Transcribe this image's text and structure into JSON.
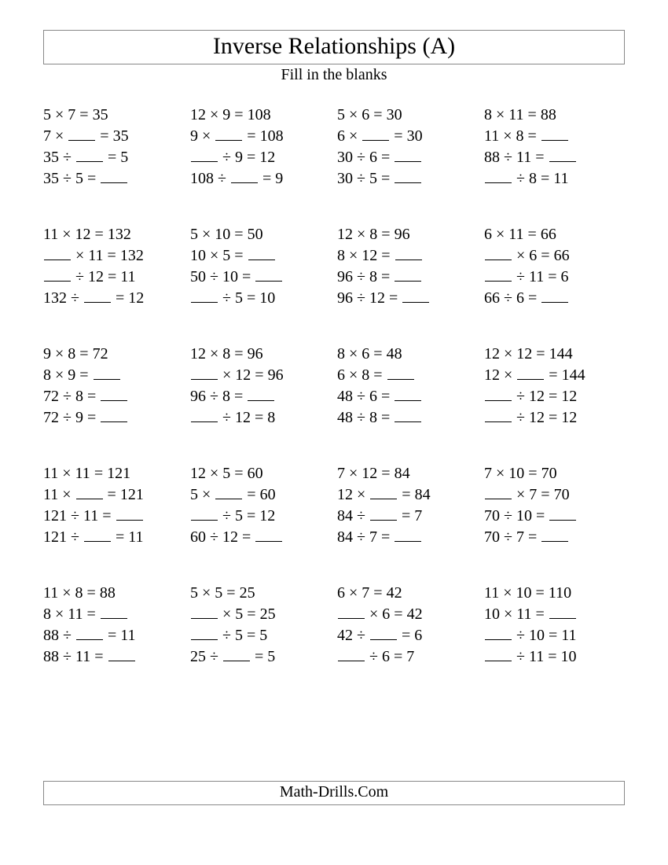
{
  "title": "Inverse Relationships (A)",
  "subtitle": "Fill in the blanks",
  "footer": "Math-Drills.Com",
  "mul": "×",
  "div": "÷",
  "eq": "=",
  "colors": {
    "bg": "#ffffff",
    "text": "#000000",
    "border": "#888888"
  },
  "groups": [
    [
      [
        "5",
        "×",
        "7",
        "=",
        "35"
      ],
      [
        "7",
        "×",
        "_",
        "=",
        "35"
      ],
      [
        "35",
        "÷",
        "_",
        "=",
        "5"
      ],
      [
        "35",
        "÷",
        "5",
        "=",
        "_"
      ]
    ],
    [
      [
        "12",
        "×",
        "9",
        "=",
        "108"
      ],
      [
        "9",
        "×",
        "_",
        "=",
        "108"
      ],
      [
        "_",
        "÷",
        "9",
        "=",
        "12"
      ],
      [
        "108",
        "÷",
        "_",
        "=",
        "9"
      ]
    ],
    [
      [
        "5",
        "×",
        "6",
        "=",
        "30"
      ],
      [
        "6",
        "×",
        "_",
        "=",
        "30"
      ],
      [
        "30",
        "÷",
        "6",
        "=",
        "_"
      ],
      [
        "30",
        "÷",
        "5",
        "=",
        "_"
      ]
    ],
    [
      [
        "8",
        "×",
        "11",
        "=",
        "88"
      ],
      [
        "11",
        "×",
        "8",
        "=",
        "_"
      ],
      [
        "88",
        "÷",
        "11",
        "=",
        "_"
      ],
      [
        "_",
        "÷",
        "8",
        "=",
        "11"
      ]
    ],
    [
      [
        "11",
        "×",
        "12",
        "=",
        "132"
      ],
      [
        "_",
        "×",
        "11",
        "=",
        "132"
      ],
      [
        "_",
        "÷",
        "12",
        "=",
        "11"
      ],
      [
        "132",
        "÷",
        "_",
        "=",
        "12"
      ]
    ],
    [
      [
        "5",
        "×",
        "10",
        "=",
        "50"
      ],
      [
        "10",
        "×",
        "5",
        "=",
        "_"
      ],
      [
        "50",
        "÷",
        "10",
        "=",
        "_"
      ],
      [
        "_",
        "÷",
        "5",
        "=",
        "10"
      ]
    ],
    [
      [
        "12",
        "×",
        "8",
        "=",
        "96"
      ],
      [
        "8",
        "×",
        "12",
        "=",
        "_"
      ],
      [
        "96",
        "÷",
        "8",
        "=",
        "_"
      ],
      [
        "96",
        "÷",
        "12",
        "=",
        "_"
      ]
    ],
    [
      [
        "6",
        "×",
        "11",
        "=",
        "66"
      ],
      [
        "_",
        "×",
        "6",
        "=",
        "66"
      ],
      [
        "_",
        "÷",
        "11",
        "=",
        "6"
      ],
      [
        "66",
        "÷",
        "6",
        "=",
        "_"
      ]
    ],
    [
      [
        "9",
        "×",
        "8",
        "=",
        "72"
      ],
      [
        "8",
        "×",
        "9",
        "=",
        "_"
      ],
      [
        "72",
        "÷",
        "8",
        "=",
        "_"
      ],
      [
        "72",
        "÷",
        "9",
        "=",
        "_"
      ]
    ],
    [
      [
        "12",
        "×",
        "8",
        "=",
        "96"
      ],
      [
        "_",
        "×",
        "12",
        "=",
        "96"
      ],
      [
        "96",
        "÷",
        "8",
        "=",
        "_"
      ],
      [
        "_",
        "÷",
        "12",
        "=",
        "8"
      ]
    ],
    [
      [
        "8",
        "×",
        "6",
        "=",
        "48"
      ],
      [
        "6",
        "×",
        "8",
        "=",
        "_"
      ],
      [
        "48",
        "÷",
        "6",
        "=",
        "_"
      ],
      [
        "48",
        "÷",
        "8",
        "=",
        "_"
      ]
    ],
    [
      [
        "12",
        "×",
        "12",
        "=",
        "144"
      ],
      [
        "12",
        "×",
        "_",
        "=",
        "144"
      ],
      [
        "_",
        "÷",
        "12",
        "=",
        "12"
      ],
      [
        "_",
        "÷",
        "12",
        "=",
        "12"
      ]
    ],
    [
      [
        "11",
        "×",
        "11",
        "=",
        "121"
      ],
      [
        "11",
        "×",
        "_",
        "=",
        "121"
      ],
      [
        "121",
        "÷",
        "11",
        "=",
        "_"
      ],
      [
        "121",
        "÷",
        "_",
        "=",
        "11"
      ]
    ],
    [
      [
        "12",
        "×",
        "5",
        "=",
        "60"
      ],
      [
        "5",
        "×",
        "_",
        "=",
        "60"
      ],
      [
        "_",
        "÷",
        "5",
        "=",
        "12"
      ],
      [
        "60",
        "÷",
        "12",
        "=",
        "_"
      ]
    ],
    [
      [
        "7",
        "×",
        "12",
        "=",
        "84"
      ],
      [
        "12",
        "×",
        "_",
        "=",
        "84"
      ],
      [
        "84",
        "÷",
        "_",
        "=",
        "7"
      ],
      [
        "84",
        "÷",
        "7",
        "=",
        "_"
      ]
    ],
    [
      [
        "7",
        "×",
        "10",
        "=",
        "70"
      ],
      [
        "_",
        "×",
        "7",
        "=",
        "70"
      ],
      [
        "70",
        "÷",
        "10",
        "=",
        "_"
      ],
      [
        "70",
        "÷",
        "7",
        "=",
        "_"
      ]
    ],
    [
      [
        "11",
        "×",
        "8",
        "=",
        "88"
      ],
      [
        "8",
        "×",
        "11",
        "=",
        "_"
      ],
      [
        "88",
        "÷",
        "_",
        "=",
        "11"
      ],
      [
        "88",
        "÷",
        "11",
        "=",
        "_"
      ]
    ],
    [
      [
        "5",
        "×",
        "5",
        "=",
        "25"
      ],
      [
        "_",
        "×",
        "5",
        "=",
        "25"
      ],
      [
        "_",
        "÷",
        "5",
        "=",
        "5"
      ],
      [
        "25",
        "÷",
        "_",
        "=",
        "5"
      ]
    ],
    [
      [
        "6",
        "×",
        "7",
        "=",
        "42"
      ],
      [
        "_",
        "×",
        "6",
        "=",
        "42"
      ],
      [
        "42",
        "÷",
        "_",
        "=",
        "6"
      ],
      [
        "_",
        "÷",
        "6",
        "=",
        "7"
      ]
    ],
    [
      [
        "11",
        "×",
        "10",
        "=",
        "110"
      ],
      [
        "10",
        "×",
        "11",
        "=",
        "_"
      ],
      [
        "_",
        "÷",
        "10",
        "=",
        "11"
      ],
      [
        "_",
        "÷",
        "11",
        "=",
        "10"
      ]
    ]
  ]
}
